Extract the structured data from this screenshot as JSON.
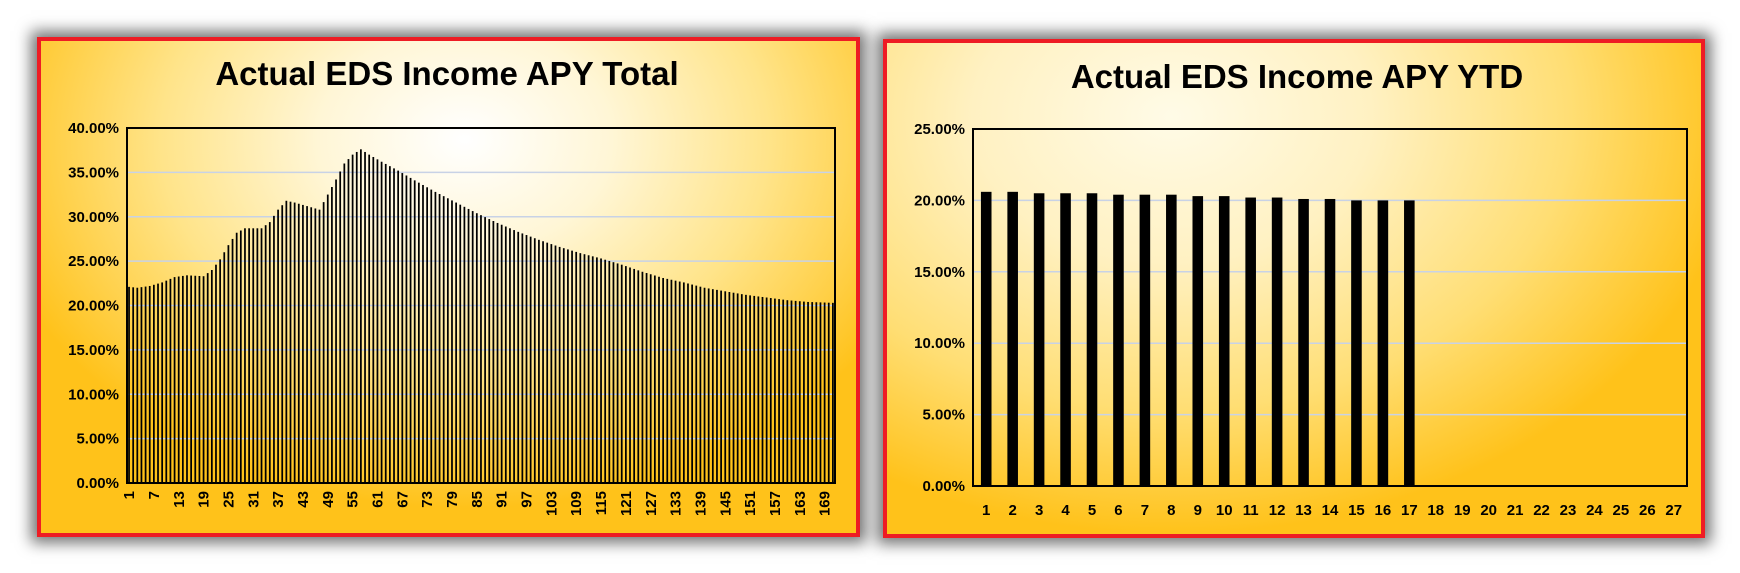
{
  "chart_data": [
    {
      "type": "bar",
      "title": "Actual EDS Income APY Total",
      "xlabel": "",
      "ylabel": "",
      "ylim": [
        0,
        0.4
      ],
      "y_ticks": [
        "0.00%",
        "5.00%",
        "10.00%",
        "15.00%",
        "20.00%",
        "25.00%",
        "30.00%",
        "35.00%",
        "40.00%"
      ],
      "x_start": 1,
      "x_end": 171,
      "x_tick_step": 6,
      "grid": "horizontal",
      "bar_color": "#000000",
      "anchors": [
        [
          1,
          0.221
        ],
        [
          3,
          0.22
        ],
        [
          6,
          0.222
        ],
        [
          9,
          0.226
        ],
        [
          12,
          0.232
        ],
        [
          15,
          0.234
        ],
        [
          19,
          0.233
        ],
        [
          21,
          0.24
        ],
        [
          23,
          0.252
        ],
        [
          25,
          0.268
        ],
        [
          27,
          0.282
        ],
        [
          29,
          0.287
        ],
        [
          33,
          0.287
        ],
        [
          35,
          0.294
        ],
        [
          37,
          0.308
        ],
        [
          39,
          0.318
        ],
        [
          41,
          0.316
        ],
        [
          44,
          0.312
        ],
        [
          47,
          0.308
        ],
        [
          49,
          0.325
        ],
        [
          51,
          0.342
        ],
        [
          53,
          0.36
        ],
        [
          55,
          0.37
        ],
        [
          57,
          0.376
        ],
        [
          59,
          0.37
        ],
        [
          62,
          0.362
        ],
        [
          66,
          0.352
        ],
        [
          70,
          0.341
        ],
        [
          75,
          0.328
        ],
        [
          80,
          0.316
        ],
        [
          85,
          0.304
        ],
        [
          90,
          0.293
        ],
        [
          95,
          0.283
        ],
        [
          100,
          0.274
        ],
        [
          105,
          0.266
        ],
        [
          110,
          0.259
        ],
        [
          115,
          0.253
        ],
        [
          120,
          0.246
        ],
        [
          125,
          0.238
        ],
        [
          130,
          0.231
        ],
        [
          135,
          0.226
        ],
        [
          140,
          0.22
        ],
        [
          145,
          0.216
        ],
        [
          150,
          0.212
        ],
        [
          155,
          0.209
        ],
        [
          160,
          0.206
        ],
        [
          165,
          0.204
        ],
        [
          171,
          0.203
        ]
      ]
    },
    {
      "type": "bar",
      "title": "Actual EDS Income APY YTD",
      "xlabel": "",
      "ylabel": "",
      "ylim": [
        0,
        0.25
      ],
      "y_ticks": [
        "0.00%",
        "5.00%",
        "10.00%",
        "15.00%",
        "20.00%",
        "25.00%"
      ],
      "categories": [
        "1",
        "2",
        "3",
        "4",
        "5",
        "6",
        "7",
        "8",
        "9",
        "10",
        "11",
        "12",
        "13",
        "14",
        "15",
        "16",
        "17",
        "18",
        "19",
        "20",
        "21",
        "22",
        "23",
        "24",
        "25",
        "26",
        "27"
      ],
      "values": [
        0.206,
        0.206,
        0.205,
        0.205,
        0.205,
        0.204,
        0.204,
        0.204,
        0.203,
        0.203,
        0.202,
        0.202,
        0.201,
        0.201,
        0.2,
        0.2,
        0.2,
        null,
        null,
        null,
        null,
        null,
        null,
        null,
        null,
        null,
        null
      ],
      "grid": "horizontal",
      "bar_color": "#000000"
    }
  ]
}
